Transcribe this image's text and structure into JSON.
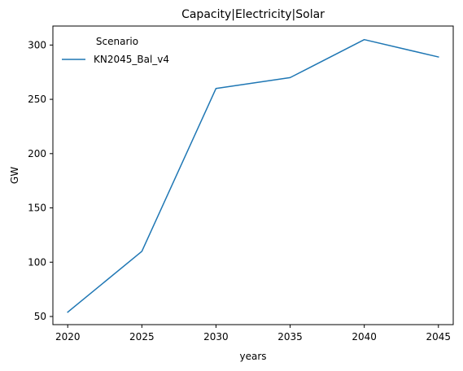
{
  "chart_data": {
    "type": "line",
    "title": "Capacity|Electricity|Solar",
    "xlabel": "years",
    "ylabel": "GW",
    "x": [
      2020,
      2025,
      2030,
      2035,
      2040,
      2045
    ],
    "xticks": [
      "2020",
      "2025",
      "2030",
      "2035",
      "2040",
      "2045"
    ],
    "yticks": [
      "50",
      "100",
      "150",
      "200",
      "250",
      "300"
    ],
    "xlim": [
      2019.0,
      2046.0
    ],
    "ylim": [
      42.5,
      317.5
    ],
    "series": [
      {
        "name": "KN2045_Bal_v4",
        "color": "#1f77b4",
        "values": [
          54,
          110,
          260,
          270,
          305,
          289
        ]
      }
    ],
    "legend": {
      "title": "Scenario",
      "placement": "top-left"
    },
    "grid": false
  }
}
